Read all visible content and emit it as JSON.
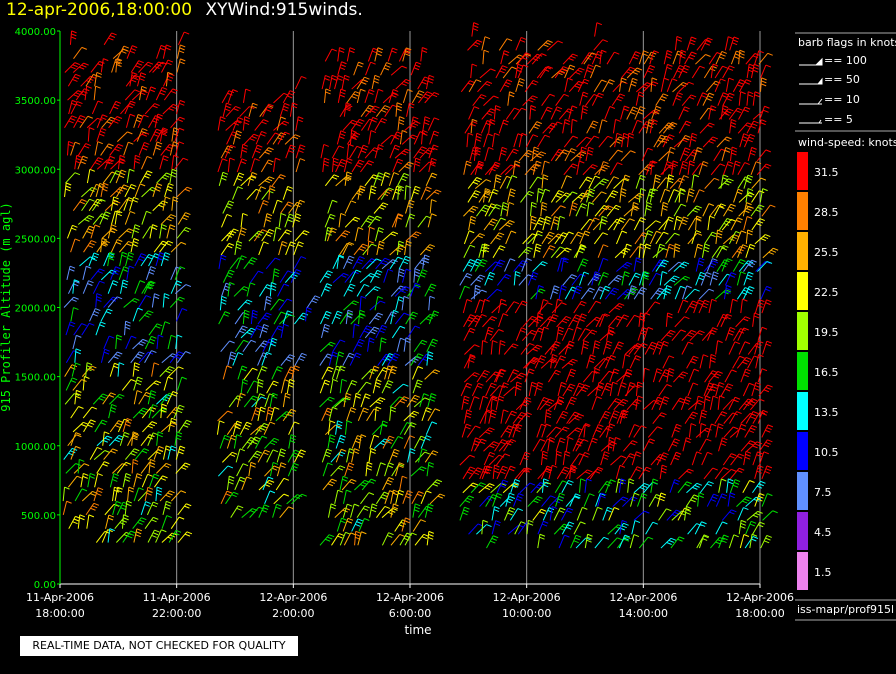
{
  "header": {
    "date": "12-apr-2006,18:00:00",
    "title": "XYWind:915winds."
  },
  "notice": "REAL-TIME DATA, NOT CHECKED FOR QUALITY",
  "barb_legend": {
    "title": "barb flags in knots",
    "items": [
      "== 100",
      "== 50",
      "== 10",
      "== 5"
    ]
  },
  "speed_legend": {
    "title": "wind-speed: knots",
    "entries": [
      {
        "label": "31.5",
        "color": "#ff0000"
      },
      {
        "label": "28.5",
        "color": "#ff8000"
      },
      {
        "label": "25.5",
        "color": "#ffb000"
      },
      {
        "label": "22.5",
        "color": "#ffff00"
      },
      {
        "label": "19.5",
        "color": "#a0ff00"
      },
      {
        "label": "16.5",
        "color": "#00e000"
      },
      {
        "label": "13.5",
        "color": "#00ffff"
      },
      {
        "label": "10.5",
        "color": "#0000ff"
      },
      {
        "label": "7.5",
        "color": "#6090ff"
      },
      {
        "label": "4.5",
        "color": "#9020e0"
      },
      {
        "label": "1.5",
        "color": "#ee82ee"
      }
    ]
  },
  "source_label": "iss-mapr/prof915l",
  "chart_data": {
    "type": "scatter",
    "title": "XYWind:915winds.",
    "xlabel": "time",
    "ylabel": "915 Profiler Altitude (m agl)",
    "ylim": [
      0,
      4000
    ],
    "yticks": [
      "0.00",
      "500.00",
      "1000.00",
      "1500.00",
      "2000.00",
      "2500.00",
      "3000.00",
      "3500.00",
      "4000.00"
    ],
    "xticks": [
      {
        "line1": "11-Apr-2006",
        "line2": "18:00:00"
      },
      {
        "line1": "11-Apr-2006",
        "line2": "22:00:00"
      },
      {
        "line1": "12-Apr-2006",
        "line2": "2:00:00"
      },
      {
        "line1": "12-Apr-2006",
        "line2": "6:00:00"
      },
      {
        "line1": "12-Apr-2006",
        "line2": "10:00:00"
      },
      {
        "line1": "12-Apr-2006",
        "line2": "14:00:00"
      },
      {
        "line1": "12-Apr-2006",
        "line2": "18:00:00"
      }
    ],
    "x_hours_range": [
      0,
      24
    ],
    "grid": "vertical at x ticks",
    "series": [
      {
        "hours": [
          0.2,
          4.0
        ],
        "top_alt": 4000,
        "bottom_alt": 300
      },
      {
        "hours": [
          5.5,
          8.0
        ],
        "top_alt": 3650,
        "bottom_alt": 480
      },
      {
        "hours": [
          8.5,
          8.6
        ],
        "top_alt": 2050,
        "bottom_alt": 1900
      },
      {
        "hours": [
          9.0,
          12.6
        ],
        "top_alt": 3950,
        "bottom_alt": 280
      },
      {
        "hours": [
          13.8,
          24.0
        ],
        "top_alt": 4000,
        "bottom_alt": 260
      }
    ]
  }
}
